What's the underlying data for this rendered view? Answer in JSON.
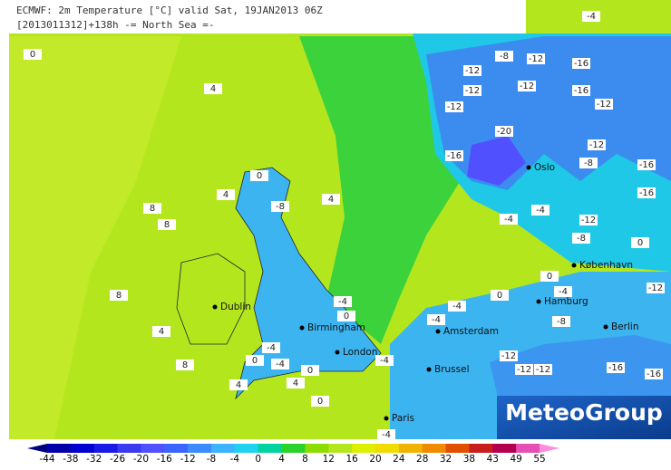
{
  "header": {
    "line1": "ECMWF: 2m Temperature [°C] valid Sat, 19JAN2013 06Z",
    "line2": "[2013011312]+138h -= North Sea =-"
  },
  "cities": [
    "Oslo",
    "København",
    "Hamburg",
    "Berlin",
    "Amsterdam",
    "Brussel",
    "London",
    "Birmingham",
    "Dublin",
    "Paris"
  ],
  "contour_labels": [
    -4,
    0,
    4,
    0,
    4,
    -8,
    4,
    8,
    8,
    8,
    4,
    8,
    4,
    -4,
    0,
    -4,
    0,
    -4,
    0,
    4,
    0,
    -4,
    -4,
    -4,
    -4,
    0,
    -8,
    -12,
    -12,
    -16,
    -20,
    -12,
    -8,
    -12,
    -16,
    -12,
    -12,
    -16,
    -8,
    -12,
    -16,
    -4,
    -8,
    -12,
    -16,
    0,
    0,
    -4,
    -12,
    -8,
    -12,
    -12,
    -16,
    -12,
    -16,
    -4
  ],
  "colorbar": {
    "ticks": [
      -44,
      -38,
      -32,
      -26,
      -20,
      -16,
      -12,
      -8,
      -4,
      0,
      4,
      8,
      12,
      16,
      20,
      24,
      28,
      32,
      38,
      43,
      49,
      55
    ],
    "colors": [
      "#000080",
      "#0000a8",
      "#0000d0",
      "#1a1ae6",
      "#3a3af0",
      "#5050ff",
      "#3c64ff",
      "#3c8cff",
      "#3cb4ff",
      "#1ed2f0",
      "#00d2a0",
      "#2cd22c",
      "#8cdc00",
      "#b4e61e",
      "#dcf000",
      "#f0dc00",
      "#f0b400",
      "#f08c00",
      "#e05000",
      "#c81e1e",
      "#b40050",
      "#e650b4",
      "#ff8cdc"
    ]
  },
  "logo": "MeteoGroup"
}
